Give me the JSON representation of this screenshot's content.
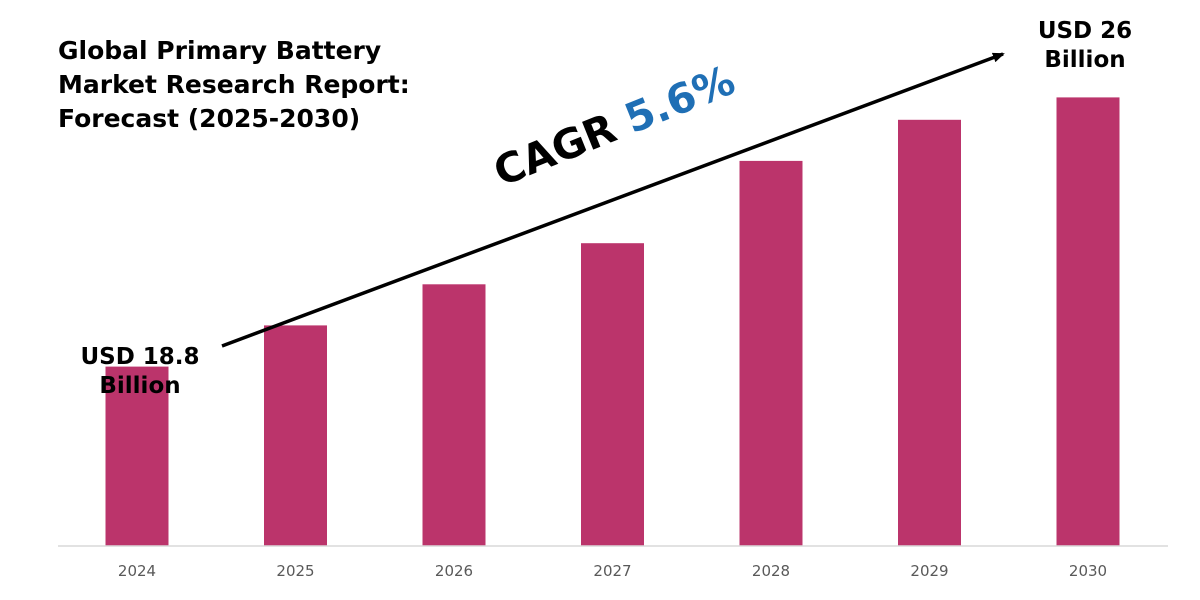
{
  "title": {
    "lines": [
      "Global Primary Battery",
      "Market Research Report:",
      "Forecast (2025-2030)"
    ]
  },
  "start_label": {
    "line1": "USD 18.8",
    "line2": "Billion"
  },
  "end_label": {
    "line1": "USD 26",
    "line2": "Billion"
  },
  "cagr": {
    "prefix": "CAGR",
    "value": "5.6%"
  },
  "colors": {
    "bar": "#bb346b",
    "cagr_value": "#1f6fb5",
    "axis": "#d9d9d9",
    "tick_text": "#595959"
  },
  "chart_data": {
    "type": "bar",
    "title": "Global Primary Battery Market Research Report: Forecast (2025-2030)",
    "categories": [
      "2024",
      "2025",
      "2026",
      "2027",
      "2028",
      "2029",
      "2030"
    ],
    "series": [
      {
        "values": [
          18.8,
          19.9,
          21.0,
          22.1,
          24.3,
          25.4,
          26.0
        ]
      }
    ],
    "annotations": [
      "USD 18.8 Billion",
      "USD 26 Billion",
      "CAGR 5.6%"
    ],
    "xlabel": "",
    "ylabel": "",
    "ylim": [
      14,
      27
    ],
    "grid": false,
    "legend": "none"
  }
}
